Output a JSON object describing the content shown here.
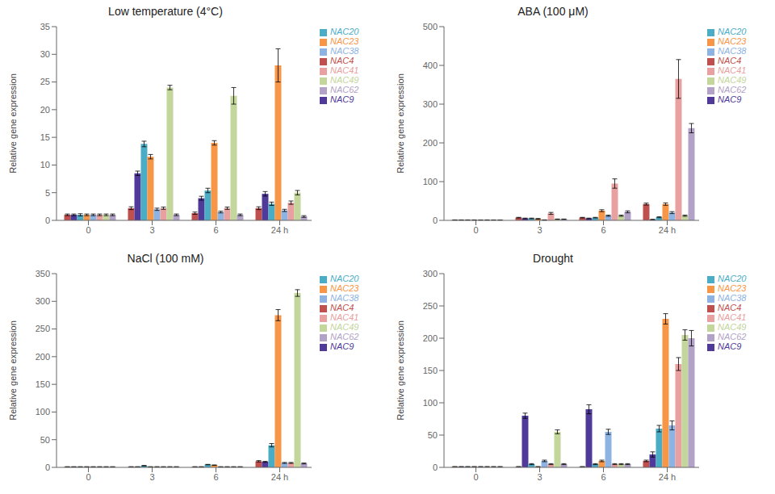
{
  "chart_data": [
    {
      "type": "bar",
      "title": "Low temperature (4°C)",
      "y_label": "Relative gene expression",
      "categories": [
        "0",
        "3",
        "6",
        "24 h"
      ],
      "ylim": [
        0,
        35
      ],
      "yticks": [
        0,
        5,
        10,
        15,
        20,
        25,
        30,
        35
      ],
      "grid": false,
      "legend": "right",
      "series": [
        {
          "name": "NAC4",
          "color": "#c0504d",
          "values": [
            1.0,
            2.2,
            1.3,
            2.2
          ],
          "errors": [
            0.15,
            0.25,
            0.2,
            0.25
          ]
        },
        {
          "name": "NAC9",
          "color": "#4f3999",
          "values": [
            1.0,
            8.5,
            4.0,
            4.8
          ],
          "errors": [
            0.15,
            0.4,
            0.35,
            0.4
          ]
        },
        {
          "name": "NAC20",
          "color": "#4bacc6",
          "values": [
            1.0,
            13.8,
            5.4,
            3.0
          ],
          "errors": [
            0.2,
            0.5,
            0.4,
            0.3
          ]
        },
        {
          "name": "NAC23",
          "color": "#f79646",
          "values": [
            1.0,
            11.5,
            14.0,
            28.0
          ],
          "errors": [
            0.15,
            0.4,
            0.4,
            3.0
          ]
        },
        {
          "name": "NAC38",
          "color": "#8db3e2",
          "values": [
            1.0,
            2.0,
            1.5,
            1.8
          ],
          "errors": [
            0.15,
            0.2,
            0.15,
            0.2
          ]
        },
        {
          "name": "NAC41",
          "color": "#e8a0a0",
          "values": [
            1.0,
            2.2,
            2.2,
            3.2
          ],
          "errors": [
            0.15,
            0.2,
            0.2,
            0.3
          ]
        },
        {
          "name": "NAC49",
          "color": "#c3d69b",
          "values": [
            1.0,
            24.0,
            22.5,
            5.0
          ],
          "errors": [
            0.15,
            0.4,
            1.5,
            0.4
          ]
        },
        {
          "name": "NAC62",
          "color": "#b2a2c7",
          "values": [
            1.0,
            1.0,
            1.0,
            0.7
          ],
          "errors": [
            0.15,
            0.15,
            0.15,
            0.15
          ]
        }
      ]
    },
    {
      "type": "bar",
      "title": "ABA (100 μM)",
      "y_label": "Relative gene expression",
      "categories": [
        "0",
        "3",
        "6",
        "24 h"
      ],
      "ylim": [
        0,
        500
      ],
      "yticks": [
        0,
        100,
        200,
        300,
        400,
        500
      ],
      "grid": false,
      "legend": "right",
      "series": [
        {
          "name": "NAC4",
          "color": "#c0504d",
          "values": [
            1.0,
            7.0,
            7.0,
            42.0
          ],
          "errors": [
            0.3,
            0.8,
            0.8,
            2.5
          ]
        },
        {
          "name": "NAC9",
          "color": "#4f3999",
          "values": [
            1.0,
            5.0,
            5.0,
            2.0
          ],
          "errors": [
            0.3,
            0.8,
            0.8,
            0.8
          ]
        },
        {
          "name": "NAC20",
          "color": "#4bacc6",
          "values": [
            1.0,
            5.0,
            7.0,
            8.0
          ],
          "errors": [
            0.3,
            0.8,
            0.8,
            1.2
          ]
        },
        {
          "name": "NAC23",
          "color": "#f79646",
          "values": [
            1.0,
            4.0,
            25.0,
            42.0
          ],
          "errors": [
            0.3,
            0.8,
            2.5,
            3.0
          ]
        },
        {
          "name": "NAC38",
          "color": "#8db3e2",
          "values": [
            1.0,
            1.0,
            12.0,
            20.0
          ],
          "errors": [
            0.2,
            0.4,
            1.5,
            2.5
          ]
        },
        {
          "name": "NAC41",
          "color": "#e8a0a0",
          "values": [
            1.0,
            18.0,
            95.0,
            365.0
          ],
          "errors": [
            0.3,
            2.5,
            12.0,
            50.0
          ]
        },
        {
          "name": "NAC49",
          "color": "#c3d69b",
          "values": [
            1.0,
            3.0,
            12.0,
            12.0
          ],
          "errors": [
            0.2,
            0.4,
            1.5,
            1.5
          ]
        },
        {
          "name": "NAC62",
          "color": "#b2a2c7",
          "values": [
            1.0,
            3.0,
            22.0,
            238.0
          ],
          "errors": [
            0.2,
            0.4,
            2.5,
            12.0
          ]
        }
      ]
    },
    {
      "type": "bar",
      "title": "NaCl (100 mM)",
      "y_label": "Relative gene expression",
      "categories": [
        "0",
        "3",
        "6",
        "24 h"
      ],
      "ylim": [
        0,
        350
      ],
      "yticks": [
        0,
        50,
        100,
        150,
        200,
        250,
        300,
        350
      ],
      "grid": false,
      "legend": "right",
      "series": [
        {
          "name": "NAC4",
          "color": "#c0504d",
          "values": [
            1.0,
            1.0,
            1.0,
            11.0
          ],
          "errors": [
            0.15,
            0.15,
            0.15,
            1.2
          ]
        },
        {
          "name": "NAC9",
          "color": "#4f3999",
          "values": [
            1.0,
            1.0,
            1.0,
            10.0
          ],
          "errors": [
            0.15,
            0.15,
            0.15,
            0.8
          ]
        },
        {
          "name": "NAC20",
          "color": "#4bacc6",
          "values": [
            1.0,
            3.0,
            5.0,
            40.0
          ],
          "errors": [
            0.15,
            0.4,
            0.4,
            3.0
          ]
        },
        {
          "name": "NAC23",
          "color": "#f79646",
          "values": [
            1.0,
            1.0,
            4.0,
            275.0
          ],
          "errors": [
            0.15,
            0.15,
            0.4,
            10.0
          ]
        },
        {
          "name": "NAC38",
          "color": "#8db3e2",
          "values": [
            1.0,
            1.0,
            1.0,
            8.0
          ],
          "errors": [
            0.15,
            0.15,
            0.15,
            0.8
          ]
        },
        {
          "name": "NAC41",
          "color": "#e8a0a0",
          "values": [
            1.0,
            1.0,
            1.0,
            8.0
          ],
          "errors": [
            0.15,
            0.15,
            0.15,
            0.8
          ]
        },
        {
          "name": "NAC49",
          "color": "#c3d69b",
          "values": [
            1.0,
            1.0,
            1.0,
            315.0
          ],
          "errors": [
            0.15,
            0.15,
            0.15,
            6.0
          ]
        },
        {
          "name": "NAC62",
          "color": "#b2a2c7",
          "values": [
            1.0,
            1.0,
            1.0,
            7.0
          ],
          "errors": [
            0.15,
            0.15,
            0.15,
            0.8
          ]
        }
      ]
    },
    {
      "type": "bar",
      "title": "Drought",
      "y_label": "Relative gene expression",
      "categories": [
        "0",
        "3",
        "6",
        "24 h"
      ],
      "ylim": [
        0,
        300
      ],
      "yticks": [
        0,
        50,
        100,
        150,
        200,
        250,
        300
      ],
      "grid": false,
      "legend": "right",
      "series": [
        {
          "name": "NAC4",
          "color": "#c0504d",
          "values": [
            1.0,
            1.0,
            1.0,
            10.0
          ],
          "errors": [
            0.15,
            0.15,
            0.15,
            1.2
          ]
        },
        {
          "name": "NAC9",
          "color": "#4f3999",
          "values": [
            1.0,
            80.0,
            90.0,
            20.0
          ],
          "errors": [
            0.15,
            4.0,
            7.0,
            4.0
          ]
        },
        {
          "name": "NAC20",
          "color": "#4bacc6",
          "values": [
            1.0,
            5.0,
            5.0,
            60.0
          ],
          "errors": [
            0.15,
            0.8,
            0.8,
            5.0
          ]
        },
        {
          "name": "NAC23",
          "color": "#f79646",
          "values": [
            1.0,
            1.0,
            10.0,
            230.0
          ],
          "errors": [
            0.15,
            0.15,
            1.2,
            8.0
          ]
        },
        {
          "name": "NAC38",
          "color": "#8db3e2",
          "values": [
            1.0,
            10.0,
            55.0,
            65.0
          ],
          "errors": [
            0.15,
            1.2,
            4.0,
            7.0
          ]
        },
        {
          "name": "NAC41",
          "color": "#e8a0a0",
          "values": [
            1.0,
            5.0,
            5.0,
            160.0
          ],
          "errors": [
            0.15,
            0.8,
            0.8,
            10.0
          ]
        },
        {
          "name": "NAC49",
          "color": "#c3d69b",
          "values": [
            1.0,
            55.0,
            5.0,
            205.0
          ],
          "errors": [
            0.15,
            3.0,
            0.8,
            8.0
          ]
        },
        {
          "name": "NAC62",
          "color": "#b2a2c7",
          "values": [
            1.0,
            5.0,
            5.0,
            200.0
          ],
          "errors": [
            0.15,
            0.8,
            0.8,
            12.0
          ]
        }
      ]
    }
  ]
}
